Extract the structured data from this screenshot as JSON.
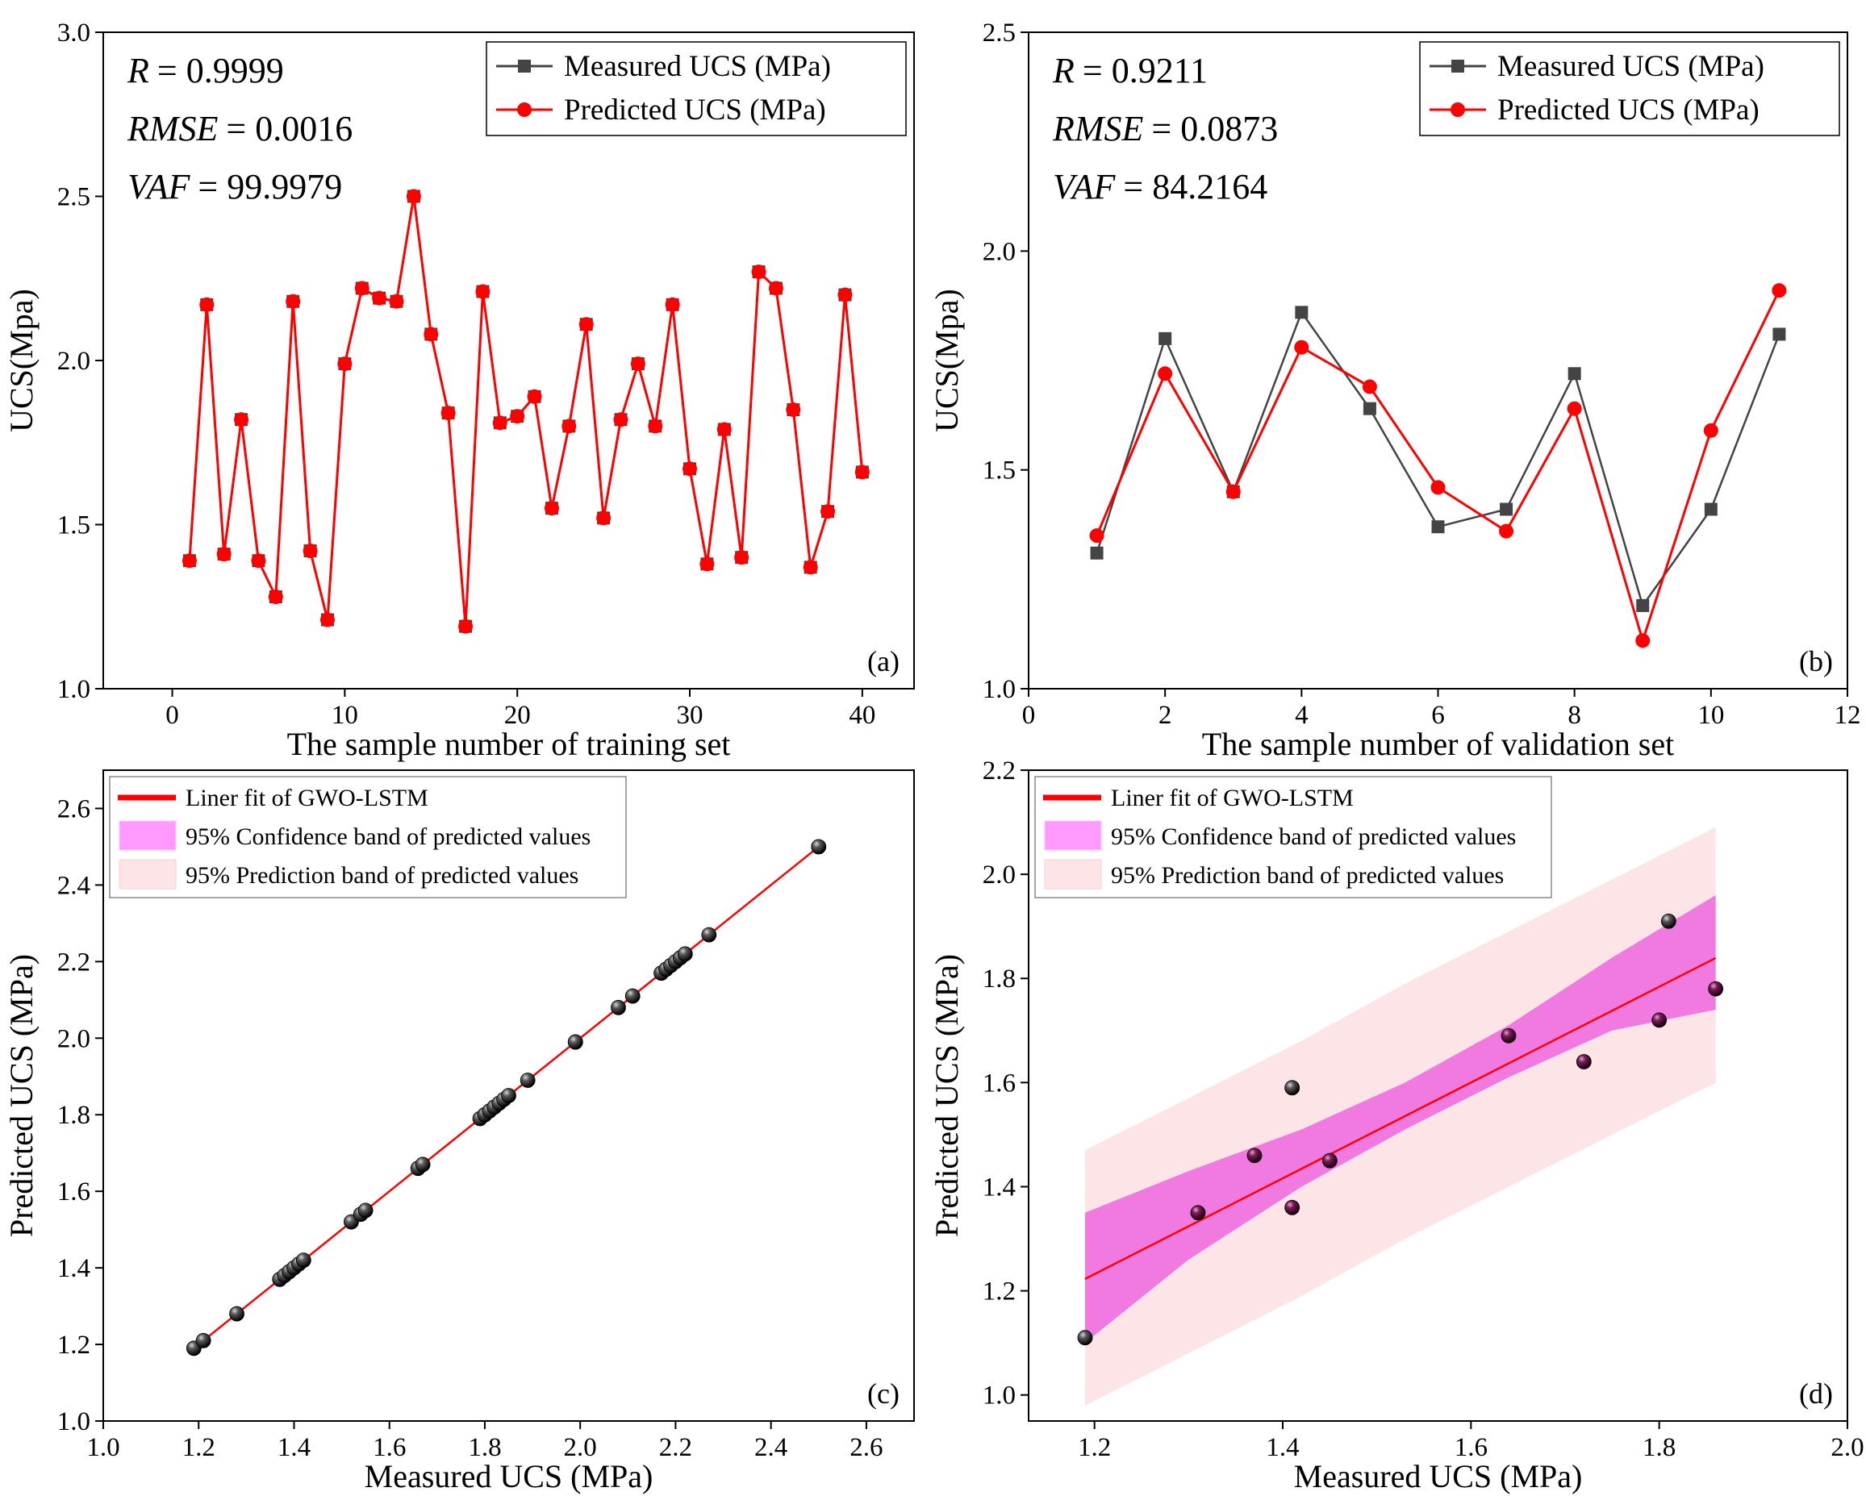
{
  "chart_data": [
    {
      "panel": "a",
      "type": "line",
      "panel_tag": "(a)",
      "xlabel": "The sample number of training set",
      "ylabel": "UCS(Mpa)",
      "xlim": [
        -4,
        43
      ],
      "ylim": [
        1.0,
        3.0
      ],
      "xticks": [
        0,
        10,
        20,
        30,
        40
      ],
      "yticks": [
        1.0,
        1.5,
        2.0,
        2.5,
        3.0
      ],
      "grid": false,
      "stats": [
        {
          "name": "R",
          "value": "= 0.9999"
        },
        {
          "name": "RMSE",
          "value": "= 0.0016"
        },
        {
          "name": "VAF",
          "value": "= 99.9979"
        }
      ],
      "legend_position": "top-right",
      "x": [
        1,
        2,
        3,
        4,
        5,
        6,
        7,
        8,
        9,
        10,
        11,
        12,
        13,
        14,
        15,
        16,
        17,
        18,
        19,
        20,
        21,
        22,
        23,
        24,
        25,
        26,
        27,
        28,
        29,
        30,
        31,
        32,
        33,
        34,
        35,
        36,
        37,
        38,
        39,
        40
      ],
      "series": [
        {
          "name": "Measured UCS (MPa)",
          "marker": "square",
          "color": "#444444",
          "values": [
            1.39,
            2.17,
            1.41,
            1.82,
            1.39,
            1.28,
            2.18,
            1.42,
            1.21,
            1.99,
            2.22,
            2.19,
            2.18,
            2.5,
            2.08,
            1.84,
            1.19,
            2.21,
            1.81,
            1.83,
            1.89,
            1.55,
            1.8,
            2.11,
            1.52,
            1.82,
            1.99,
            1.8,
            2.17,
            1.67,
            1.38,
            1.79,
            1.4,
            2.27,
            2.22,
            1.85,
            1.37,
            1.54,
            2.2,
            1.66
          ]
        },
        {
          "name": "Predicted UCS (MPa)",
          "marker": "circle",
          "color": "#ff0000",
          "values": [
            1.39,
            2.17,
            1.41,
            1.82,
            1.39,
            1.28,
            2.18,
            1.42,
            1.21,
            1.99,
            2.22,
            2.19,
            2.18,
            2.5,
            2.08,
            1.84,
            1.19,
            2.21,
            1.81,
            1.83,
            1.89,
            1.55,
            1.8,
            2.11,
            1.52,
            1.82,
            1.99,
            1.8,
            2.17,
            1.67,
            1.38,
            1.79,
            1.4,
            2.27,
            2.22,
            1.85,
            1.37,
            1.54,
            2.2,
            1.66
          ]
        }
      ]
    },
    {
      "panel": "b",
      "type": "line",
      "panel_tag": "(b)",
      "xlabel": "The sample number of validation set",
      "ylabel": "UCS(Mpa)",
      "xlim": [
        0,
        12
      ],
      "ylim": [
        1.0,
        2.5
      ],
      "xticks": [
        0,
        2,
        4,
        6,
        8,
        10,
        12
      ],
      "yticks": [
        1.0,
        1.5,
        2.0,
        2.5
      ],
      "grid": false,
      "stats": [
        {
          "name": "R",
          "value": "= 0.9211"
        },
        {
          "name": "RMSE",
          "value": "= 0.0873"
        },
        {
          "name": "VAF",
          "value": "= 84.2164"
        }
      ],
      "legend_position": "top-right",
      "x": [
        1,
        2,
        3,
        4,
        5,
        6,
        7,
        8,
        9,
        10,
        11
      ],
      "series": [
        {
          "name": "Measured UCS (MPa)",
          "marker": "square",
          "color": "#444444",
          "values": [
            1.31,
            1.8,
            1.45,
            1.86,
            1.64,
            1.37,
            1.41,
            1.72,
            1.19,
            1.41,
            1.81
          ]
        },
        {
          "name": "Predicted UCS (MPa)",
          "marker": "circle",
          "color": "#ff0000",
          "values": [
            1.35,
            1.72,
            1.45,
            1.78,
            1.69,
            1.46,
            1.36,
            1.64,
            1.11,
            1.59,
            1.91
          ]
        }
      ]
    },
    {
      "panel": "c",
      "type": "scatter",
      "panel_tag": "(c)",
      "xlabel": "Measured UCS (MPa)",
      "ylabel": "Predicted UCS (MPa)",
      "xlim": [
        1.0,
        2.7
      ],
      "ylim": [
        1.0,
        2.7
      ],
      "xticks": [
        1.0,
        1.2,
        1.4,
        1.6,
        1.8,
        2.0,
        2.2,
        2.4,
        2.6
      ],
      "yticks": [
        1.0,
        1.2,
        1.4,
        1.6,
        1.8,
        2.0,
        2.2,
        2.4,
        2.6
      ],
      "grid": false,
      "legend_position": "top-left",
      "legend": [
        "Liner fit of GWO-LSTM",
        "95% Confidence band of predicted values",
        "95% Prediction band of predicted values"
      ],
      "fit": {
        "slope": 1.0,
        "intercept": 0.0,
        "x_range": [
          1.19,
          2.5
        ]
      },
      "points": [
        [
          1.19,
          1.19
        ],
        [
          1.21,
          1.21
        ],
        [
          1.28,
          1.28
        ],
        [
          1.37,
          1.37
        ],
        [
          1.38,
          1.38
        ],
        [
          1.39,
          1.39
        ],
        [
          1.39,
          1.39
        ],
        [
          1.4,
          1.4
        ],
        [
          1.41,
          1.41
        ],
        [
          1.42,
          1.42
        ],
        [
          1.52,
          1.52
        ],
        [
          1.54,
          1.54
        ],
        [
          1.55,
          1.55
        ],
        [
          1.66,
          1.66
        ],
        [
          1.67,
          1.67
        ],
        [
          1.79,
          1.79
        ],
        [
          1.8,
          1.8
        ],
        [
          1.8,
          1.8
        ],
        [
          1.81,
          1.81
        ],
        [
          1.82,
          1.82
        ],
        [
          1.82,
          1.82
        ],
        [
          1.83,
          1.83
        ],
        [
          1.84,
          1.84
        ],
        [
          1.85,
          1.85
        ],
        [
          1.89,
          1.89
        ],
        [
          1.99,
          1.99
        ],
        [
          1.99,
          1.99
        ],
        [
          2.08,
          2.08
        ],
        [
          2.11,
          2.11
        ],
        [
          2.17,
          2.17
        ],
        [
          2.17,
          2.17
        ],
        [
          2.18,
          2.18
        ],
        [
          2.18,
          2.18
        ],
        [
          2.19,
          2.19
        ],
        [
          2.2,
          2.2
        ],
        [
          2.21,
          2.21
        ],
        [
          2.22,
          2.22
        ],
        [
          2.22,
          2.22
        ],
        [
          2.27,
          2.27
        ],
        [
          2.5,
          2.5
        ]
      ]
    },
    {
      "panel": "d",
      "type": "scatter",
      "panel_tag": "(d)",
      "xlabel": "Measured UCS (MPa)",
      "ylabel": "Predicted UCS (MPa)",
      "xlim": [
        1.13,
        2.0
      ],
      "ylim": [
        0.95,
        2.2
      ],
      "xticks": [
        1.2,
        1.4,
        1.6,
        1.8,
        2.0
      ],
      "yticks": [
        1.0,
        1.2,
        1.4,
        1.6,
        1.8,
        2.0,
        2.2
      ],
      "grid": false,
      "legend_position": "top-left",
      "legend": [
        "Liner fit of GWO-LSTM",
        "95% Confidence band of predicted values",
        "95% Prediction band of predicted values"
      ],
      "fit": {
        "slope": 0.92,
        "intercept": 0.128,
        "x_range": [
          1.19,
          1.86
        ]
      },
      "confidence_band": {
        "x": [
          1.19,
          1.3,
          1.42,
          1.53,
          1.64,
          1.75,
          1.86
        ],
        "lower": [
          1.1,
          1.26,
          1.4,
          1.51,
          1.61,
          1.7,
          1.74
        ],
        "upper": [
          1.35,
          1.43,
          1.51,
          1.6,
          1.71,
          1.84,
          1.96
        ]
      },
      "prediction_band": {
        "x": [
          1.19,
          1.3,
          1.42,
          1.53,
          1.64,
          1.75,
          1.86
        ],
        "lower": [
          0.98,
          1.08,
          1.19,
          1.3,
          1.4,
          1.5,
          1.6
        ],
        "upper": [
          1.47,
          1.57,
          1.68,
          1.79,
          1.89,
          1.99,
          2.09
        ]
      },
      "points": [
        [
          1.19,
          1.11
        ],
        [
          1.31,
          1.35
        ],
        [
          1.37,
          1.46
        ],
        [
          1.41,
          1.36
        ],
        [
          1.41,
          1.59
        ],
        [
          1.45,
          1.45
        ],
        [
          1.64,
          1.69
        ],
        [
          1.72,
          1.64
        ],
        [
          1.8,
          1.72
        ],
        [
          1.81,
          1.91
        ],
        [
          1.86,
          1.78
        ]
      ]
    }
  ]
}
